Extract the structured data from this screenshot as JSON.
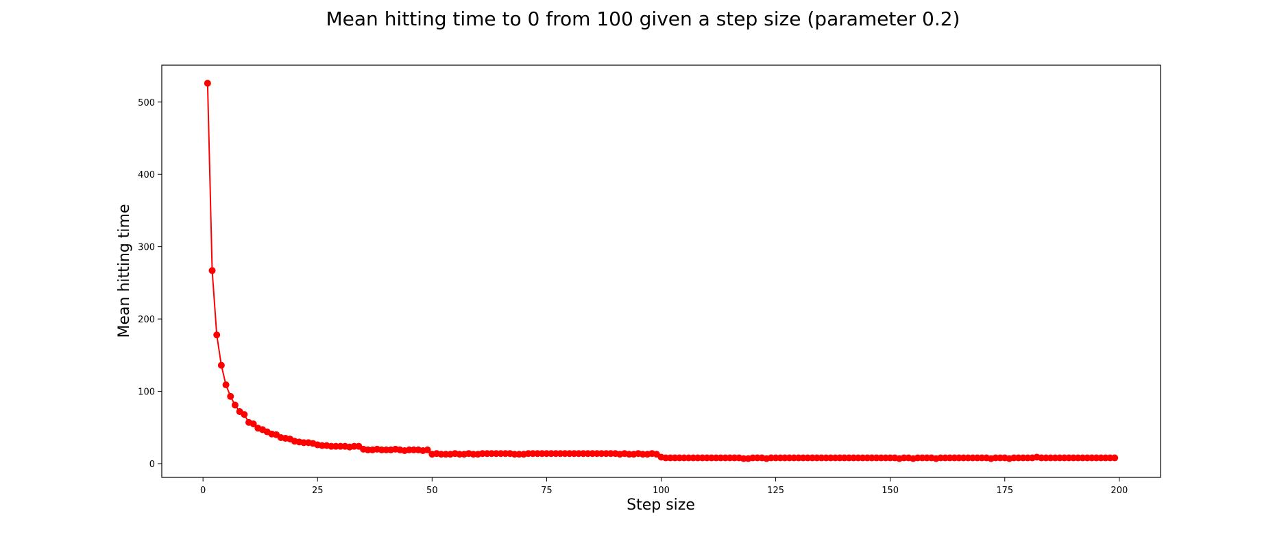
{
  "chart_data": {
    "type": "line",
    "title": "Mean hitting time to 0 from 100 given a step size (parameter 0.2)",
    "xlabel": "Step size",
    "ylabel": "Mean hitting time",
    "xlim": [
      -9,
      209
    ],
    "ylim": [
      -19,
      551
    ],
    "xticks": [
      0,
      25,
      50,
      75,
      100,
      125,
      150,
      175,
      200
    ],
    "yticks": [
      0,
      100,
      200,
      300,
      400,
      500
    ],
    "grid": false,
    "color": "#ff0000",
    "marker": "circle",
    "series": [
      {
        "x": [
          1,
          2,
          3,
          4,
          5,
          6,
          7,
          8,
          9,
          10,
          11,
          12,
          13,
          14,
          15,
          16,
          17,
          18,
          19,
          20,
          21,
          22,
          23,
          24,
          25,
          26,
          27,
          28,
          29,
          30,
          31,
          32,
          33,
          34,
          35,
          36,
          37,
          38,
          39,
          40,
          41,
          42,
          43,
          44,
          45,
          46,
          47,
          48,
          49,
          50,
          51,
          52,
          53,
          54,
          55,
          56,
          57,
          58,
          59,
          60,
          61,
          62,
          63,
          64,
          65,
          66,
          67,
          68,
          69,
          70,
          71,
          72,
          73,
          74,
          75,
          76,
          77,
          78,
          79,
          80,
          81,
          82,
          83,
          84,
          85,
          86,
          87,
          88,
          89,
          90,
          91,
          92,
          93,
          94,
          95,
          96,
          97,
          98,
          99,
          100,
          101,
          102,
          103,
          104,
          105,
          106,
          107,
          108,
          109,
          110,
          111,
          112,
          113,
          114,
          115,
          116,
          117,
          118,
          119,
          120,
          121,
          122,
          123,
          124,
          125,
          126,
          127,
          128,
          129,
          130,
          131,
          132,
          133,
          134,
          135,
          136,
          137,
          138,
          139,
          140,
          141,
          142,
          143,
          144,
          145,
          146,
          147,
          148,
          149,
          150,
          151,
          152,
          153,
          154,
          155,
          156,
          157,
          158,
          159,
          160,
          161,
          162,
          163,
          164,
          165,
          166,
          167,
          168,
          169,
          170,
          171,
          172,
          173,
          174,
          175,
          176,
          177,
          178,
          179,
          180,
          181,
          182,
          183,
          184,
          185,
          186,
          187,
          188,
          189,
          190,
          191,
          192,
          193,
          194,
          195,
          196,
          197,
          198,
          199
        ],
        "y": [
          526,
          267,
          178,
          136,
          109,
          93,
          81,
          72,
          68,
          57,
          55,
          49,
          47,
          44,
          41,
          40,
          36,
          35,
          34,
          31,
          30,
          29,
          29,
          28,
          26,
          25,
          25,
          24,
          24,
          24,
          24,
          23,
          24,
          24,
          20,
          19,
          19,
          20,
          19,
          19,
          19,
          20,
          19,
          18,
          19,
          19,
          19,
          18,
          19,
          13,
          14,
          13,
          13,
          13,
          14,
          13,
          13,
          14,
          13,
          13,
          14,
          14,
          14,
          14,
          14,
          14,
          14,
          13,
          13,
          13,
          14,
          14,
          14,
          14,
          14,
          14,
          14,
          14,
          14,
          14,
          14,
          14,
          14,
          14,
          14,
          14,
          14,
          14,
          14,
          14,
          13,
          14,
          13,
          13,
          14,
          13,
          13,
          14,
          13,
          9,
          8,
          8,
          8,
          8,
          8,
          8,
          8,
          8,
          8,
          8,
          8,
          8,
          8,
          8,
          8,
          8,
          8,
          7,
          7,
          8,
          8,
          8,
          7,
          8,
          8,
          8,
          8,
          8,
          8,
          8,
          8,
          8,
          8,
          8,
          8,
          8,
          8,
          8,
          8,
          8,
          8,
          8,
          8,
          8,
          8,
          8,
          8,
          8,
          8,
          8,
          8,
          7,
          8,
          8,
          7,
          8,
          8,
          8,
          8,
          7,
          8,
          8,
          8,
          8,
          8,
          8,
          8,
          8,
          8,
          8,
          8,
          7,
          8,
          8,
          8,
          7,
          8,
          8,
          8,
          8,
          8,
          9,
          8,
          8,
          8,
          8,
          8,
          8,
          8,
          8,
          8,
          8,
          8,
          8,
          8,
          8,
          8,
          8,
          8
        ]
      }
    ]
  }
}
